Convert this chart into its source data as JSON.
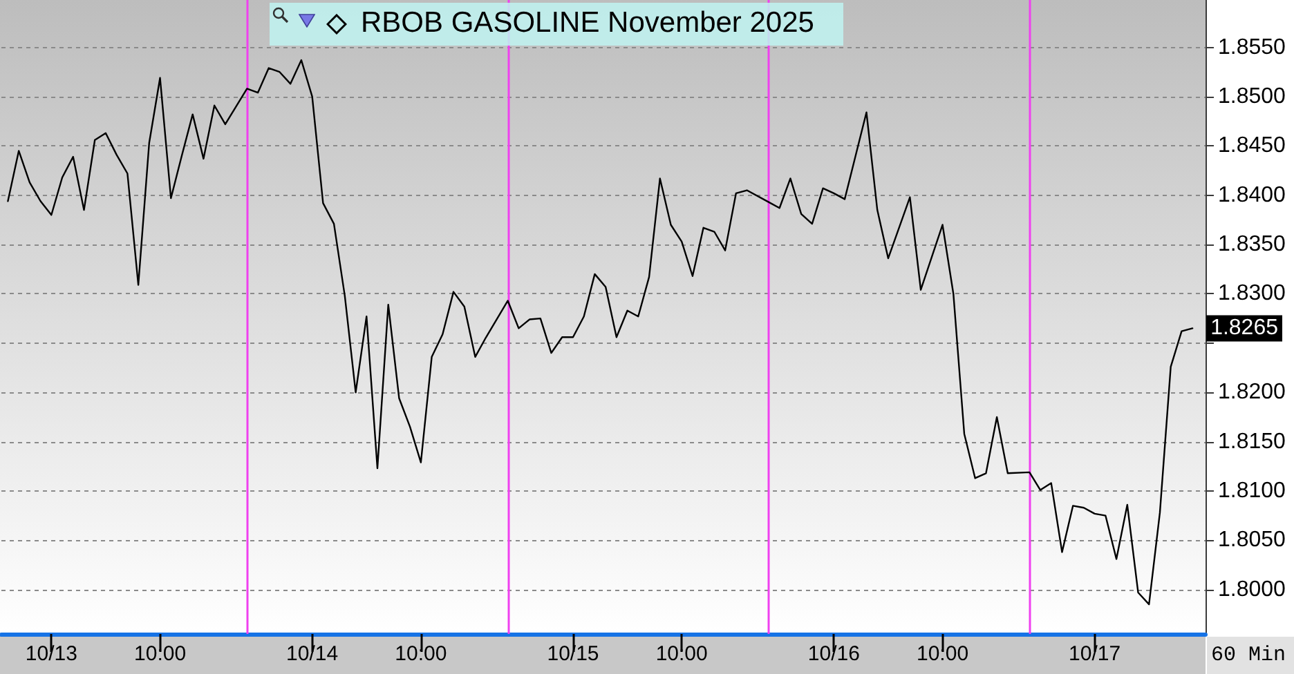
{
  "chart_data": {
    "type": "line",
    "title": "RBOB GASOLINE November 2025",
    "annotations": [
      "60 Min"
    ],
    "x": [
      "2025-10-12T20:00",
      "2025-10-12T21:00",
      "2025-10-12T22:00",
      "2025-10-12T23:00",
      "2025-10-13T00:00",
      "2025-10-13T01:00",
      "2025-10-13T02:00",
      "2025-10-13T03:00",
      "2025-10-13T04:00",
      "2025-10-13T05:00",
      "2025-10-13T06:00",
      "2025-10-13T07:00",
      "2025-10-13T08:00",
      "2025-10-13T09:00",
      "2025-10-13T10:00",
      "2025-10-13T11:00",
      "2025-10-13T12:00",
      "2025-10-13T13:00",
      "2025-10-13T14:00",
      "2025-10-13T15:00",
      "2025-10-13T16:00",
      "2025-10-13T18:00",
      "2025-10-13T19:00",
      "2025-10-13T20:00",
      "2025-10-13T21:00",
      "2025-10-13T22:00",
      "2025-10-13T23:00",
      "2025-10-14T00:00",
      "2025-10-14T01:00",
      "2025-10-14T02:00",
      "2025-10-14T03:00",
      "2025-10-14T04:00",
      "2025-10-14T05:00",
      "2025-10-14T06:00",
      "2025-10-14T07:00",
      "2025-10-14T08:00",
      "2025-10-14T09:00",
      "2025-10-14T10:00",
      "2025-10-14T11:00",
      "2025-10-14T12:00",
      "2025-10-14T13:00",
      "2025-10-14T14:00",
      "2025-10-14T15:00",
      "2025-10-14T16:00",
      "2025-10-14T18:00",
      "2025-10-14T19:00",
      "2025-10-14T20:00",
      "2025-10-14T21:00",
      "2025-10-14T22:00",
      "2025-10-14T23:00",
      "2025-10-15T00:00",
      "2025-10-15T01:00",
      "2025-10-15T02:00",
      "2025-10-15T03:00",
      "2025-10-15T04:00",
      "2025-10-15T05:00",
      "2025-10-15T06:00",
      "2025-10-15T07:00",
      "2025-10-15T08:00",
      "2025-10-15T09:00",
      "2025-10-15T10:00",
      "2025-10-15T11:00",
      "2025-10-15T12:00",
      "2025-10-15T13:00",
      "2025-10-15T14:00",
      "2025-10-15T15:00",
      "2025-10-15T16:00",
      "2025-10-15T18:00",
      "2025-10-15T19:00",
      "2025-10-15T20:00",
      "2025-10-15T21:00",
      "2025-10-15T22:00",
      "2025-10-15T23:00",
      "2025-10-16T00:00",
      "2025-10-16T01:00",
      "2025-10-16T02:00",
      "2025-10-16T03:00",
      "2025-10-16T04:00",
      "2025-10-16T05:00",
      "2025-10-16T06:00",
      "2025-10-16T07:00",
      "2025-10-16T08:00",
      "2025-10-16T09:00",
      "2025-10-16T10:00",
      "2025-10-16T11:00",
      "2025-10-16T12:00",
      "2025-10-16T13:00",
      "2025-10-16T14:00",
      "2025-10-16T15:00",
      "2025-10-16T16:00",
      "2025-10-16T18:00",
      "2025-10-16T19:00",
      "2025-10-16T20:00",
      "2025-10-16T21:00",
      "2025-10-16T22:00",
      "2025-10-16T23:00",
      "2025-10-17T00:00",
      "2025-10-17T01:00",
      "2025-10-17T02:00",
      "2025-10-17T03:00",
      "2025-10-17T04:00",
      "2025-10-17T05:00",
      "2025-10-17T06:00",
      "2025-10-17T07:00",
      "2025-10-17T08:00",
      "2025-10-17T09:00"
    ],
    "values": [
      1.8394,
      1.8445,
      1.8413,
      1.8394,
      1.838,
      1.8418,
      1.8439,
      1.8385,
      1.8456,
      1.8463,
      1.8441,
      1.8422,
      1.8309,
      1.8453,
      1.8519,
      1.8397,
      1.844,
      1.8482,
      1.8437,
      1.8491,
      1.8472,
      1.8508,
      1.8504,
      1.8529,
      1.8525,
      1.8513,
      1.8537,
      1.85,
      1.8392,
      1.8371,
      1.8298,
      1.82,
      1.8277,
      1.8123,
      1.8289,
      1.8194,
      1.8165,
      1.8129,
      1.8236,
      1.8259,
      1.8302,
      1.8287,
      1.8236,
      1.8256,
      1.8293,
      1.8265,
      1.8274,
      1.8275,
      1.824,
      1.8256,
      1.8256,
      1.8277,
      1.832,
      1.8307,
      1.8256,
      1.8283,
      1.8277,
      1.8317,
      1.8417,
      1.837,
      1.8353,
      1.8318,
      1.8367,
      1.8363,
      1.8344,
      1.8402,
      1.8405,
      1.8393,
      1.8387,
      1.8417,
      1.8381,
      1.8371,
      1.8407,
      1.8402,
      1.8396,
      1.844,
      1.8484,
      1.8385,
      1.8336,
      1.8367,
      1.8398,
      1.8304,
      1.8337,
      1.837,
      1.83,
      1.8158,
      1.8113,
      1.8118,
      1.8175,
      1.8118,
      1.8119,
      1.8101,
      1.8108,
      1.8038,
      1.8085,
      1.8083,
      1.8077,
      1.8075,
      1.8031,
      1.8086,
      1.7997,
      1.7985,
      1.8078,
      1.8226,
      1.8262,
      1.8265
    ],
    "value_labels": [
      null,
      null,
      null,
      null,
      null,
      null,
      null,
      null,
      null,
      null,
      null,
      null,
      null,
      null,
      null,
      null,
      null,
      null,
      null,
      null,
      null,
      null,
      null,
      null,
      null,
      null,
      null,
      null,
      null,
      null,
      null,
      null,
      null,
      null,
      null,
      null,
      null,
      null,
      null,
      null,
      null,
      null,
      null,
      null,
      null,
      null,
      null,
      null,
      null,
      null,
      null,
      null,
      null,
      null,
      null,
      null,
      null,
      null,
      null,
      null,
      null,
      null,
      null,
      null,
      null,
      null,
      null,
      null,
      null,
      null,
      null,
      null,
      null,
      null,
      null,
      null,
      null,
      null,
      null,
      null,
      null,
      null,
      null,
      null,
      null,
      null,
      null,
      null,
      null,
      null,
      null,
      null,
      null,
      null,
      null,
      null,
      null,
      null,
      null,
      null,
      null,
      null,
      null,
      null,
      null,
      "1.8265"
    ],
    "color": "#000000",
    "xlim": [
      "2025-10-12T19:24",
      "2025-10-17T10:12"
    ],
    "xticks": [
      {
        "value": "2025-10-13T00:00",
        "label": "10/13"
      },
      {
        "value": "2025-10-13T10:00",
        "label": "10:00"
      },
      {
        "value": "2025-10-14T00:00",
        "label": "10/14"
      },
      {
        "value": "2025-10-14T10:00",
        "label": "10:00"
      },
      {
        "value": "2025-10-15T00:00",
        "label": "10/15"
      },
      {
        "value": "2025-10-15T10:00",
        "label": "10:00"
      },
      {
        "value": "2025-10-16T00:00",
        "label": "10/16"
      },
      {
        "value": "2025-10-16T10:00",
        "label": "10:00"
      },
      {
        "value": "2025-10-17T00:00",
        "label": "10/17"
      }
    ],
    "ylim": [
      1.7955,
      1.8598
    ],
    "yticks": [
      {
        "value": 1.8,
        "label": "1.8000"
      },
      {
        "value": 1.805,
        "label": "1.8050"
      },
      {
        "value": 1.81,
        "label": "1.8100"
      },
      {
        "value": 1.815,
        "label": "1.8150"
      },
      {
        "value": 1.82,
        "label": "1.8200"
      },
      {
        "value": 1.825,
        "label": null
      },
      {
        "value": 1.83,
        "label": "1.8300"
      },
      {
        "value": 1.835,
        "label": "1.8350"
      },
      {
        "value": 1.84,
        "label": "1.8400"
      },
      {
        "value": 1.845,
        "label": "1.8450"
      },
      {
        "value": 1.85,
        "label": "1.8500"
      },
      {
        "value": 1.855,
        "label": "1.8550"
      }
    ],
    "grid": "y",
    "ref_lines": [
      {
        "axis": "x",
        "value": "2025-10-13T18:00",
        "color": "#f040f0"
      },
      {
        "axis": "x",
        "value": "2025-10-14T18:00",
        "color": "#f040f0"
      },
      {
        "axis": "x",
        "value": "2025-10-15T18:00",
        "color": "#f040f0"
      },
      {
        "axis": "x",
        "value": "2025-10-16T18:00",
        "color": "#f040f0"
      }
    ]
  }
}
